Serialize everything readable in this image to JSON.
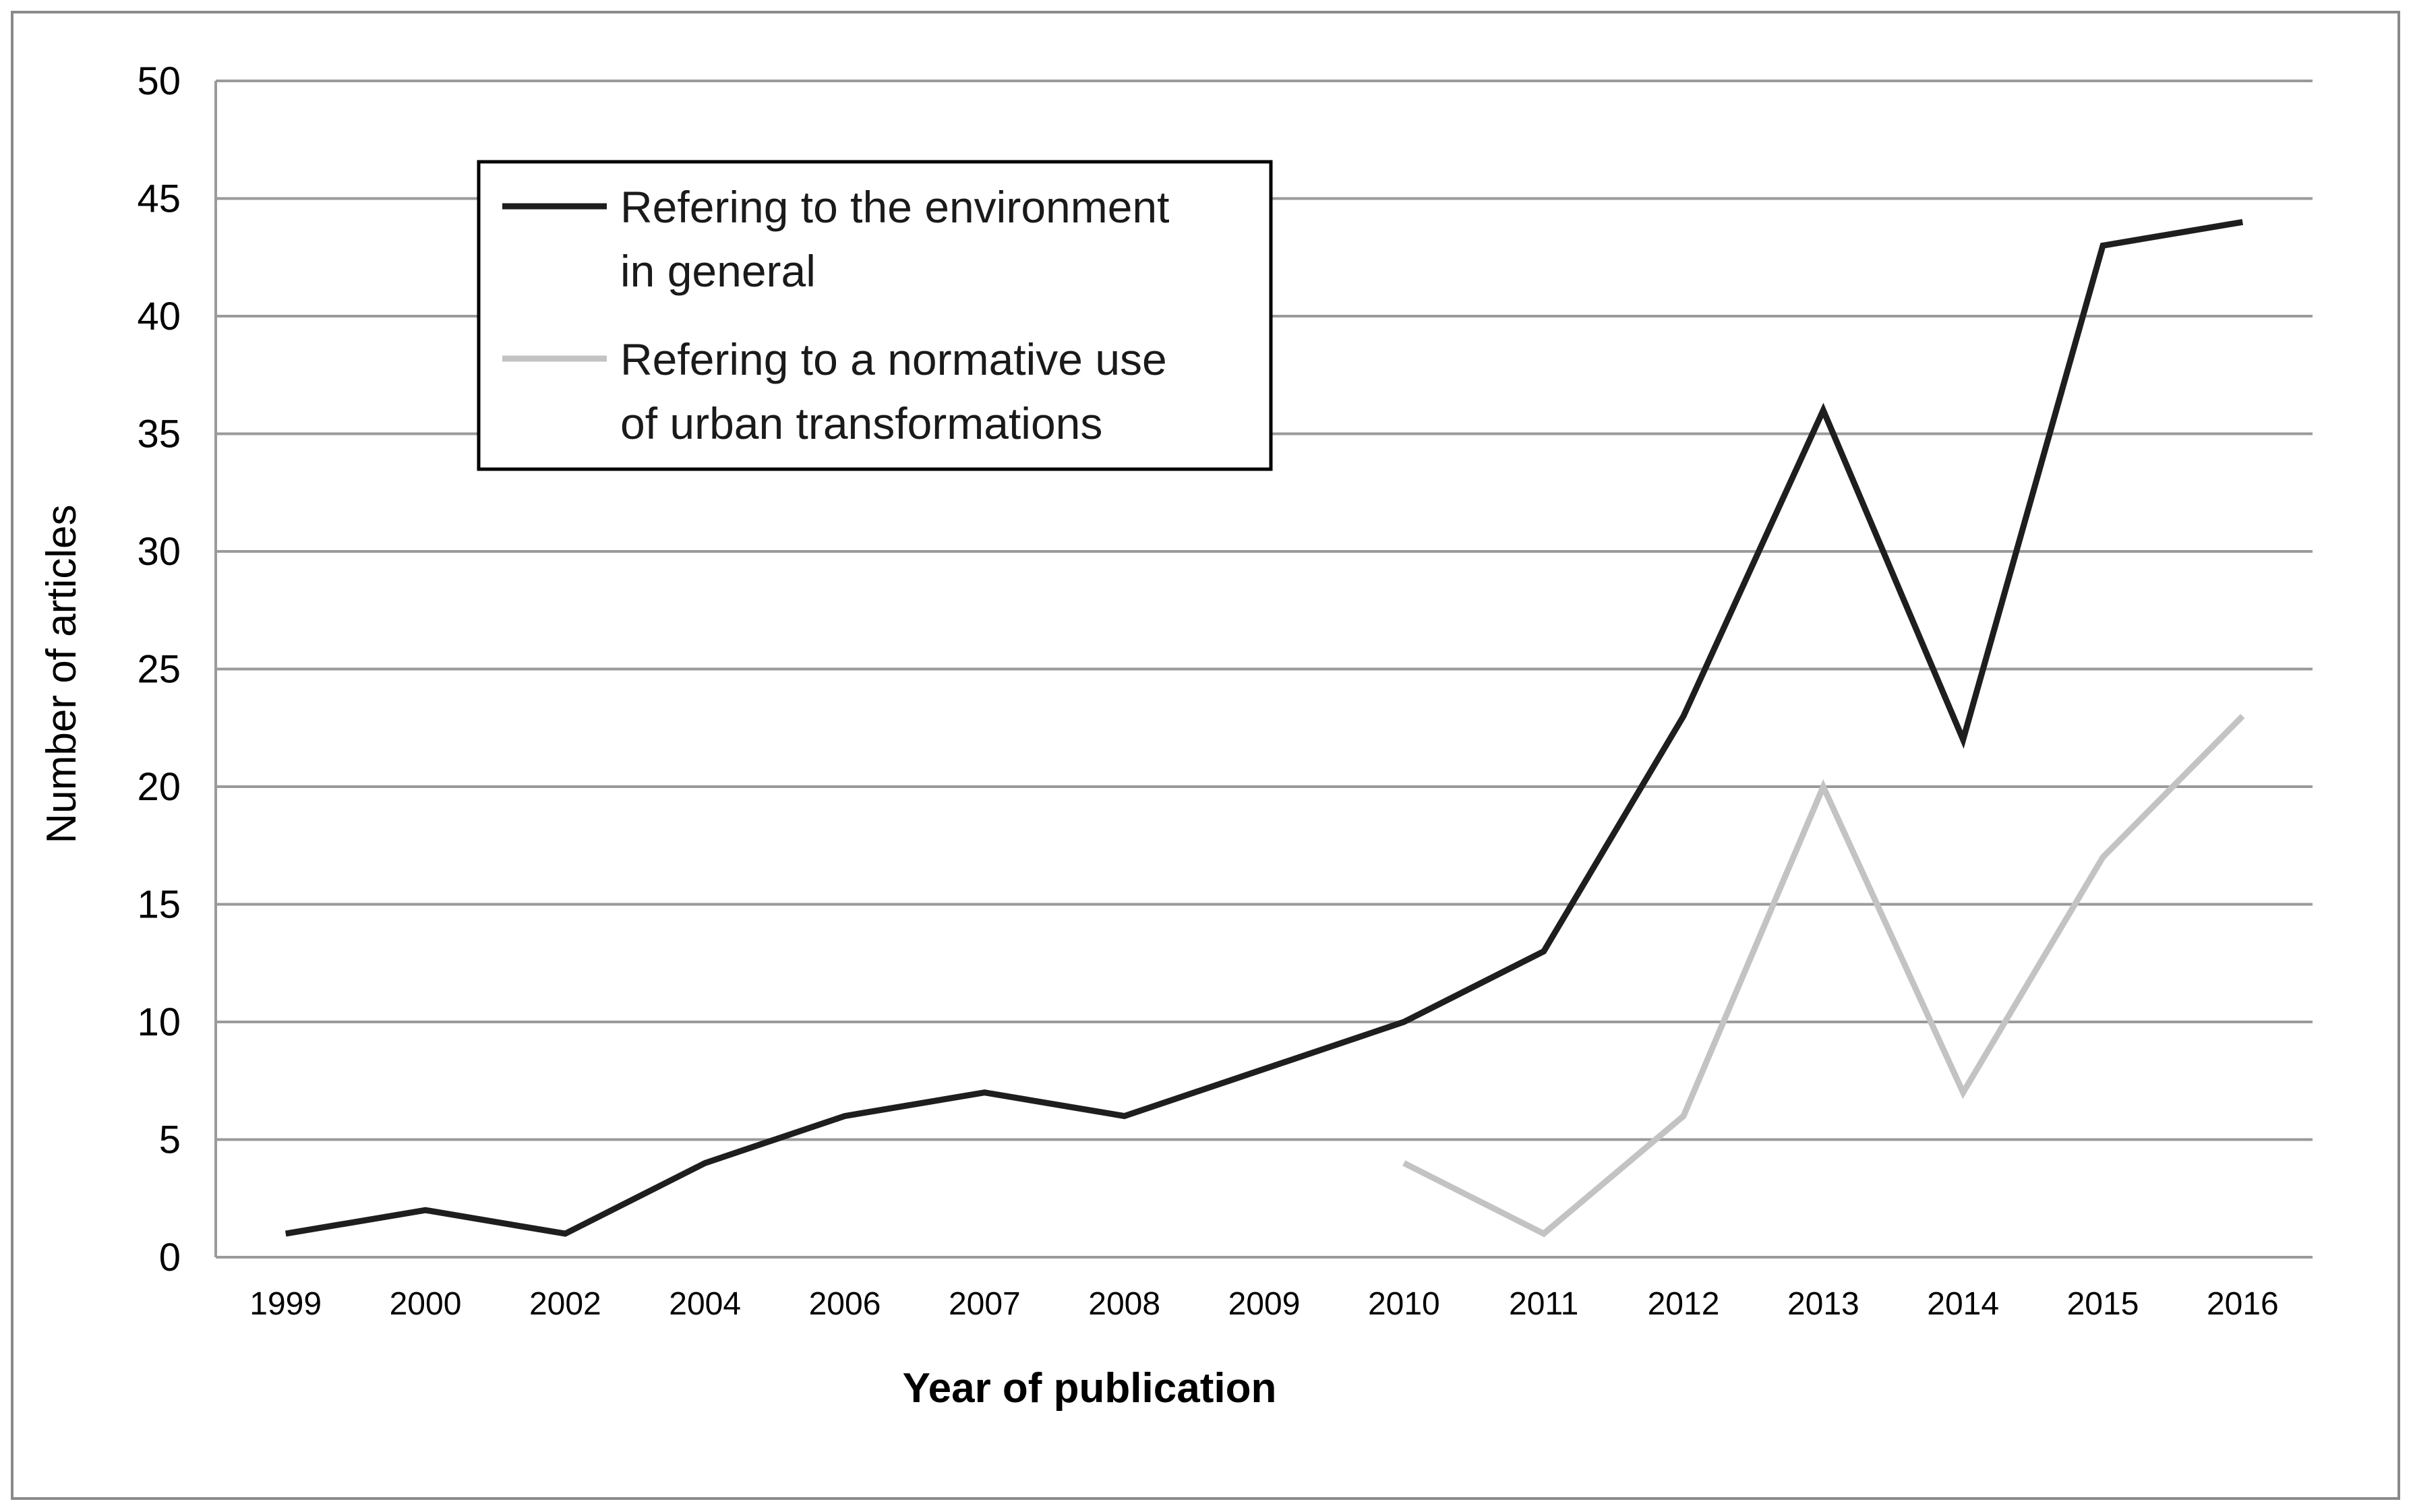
{
  "chart_data": {
    "type": "line",
    "title": "",
    "xlabel": "Year of publication",
    "ylabel": "Number of articles",
    "categories": [
      "1999",
      "2000",
      "2002",
      "2004",
      "2006",
      "2007",
      "2008",
      "2009",
      "2010",
      "2011",
      "2012",
      "2013",
      "2014",
      "2015",
      "2016"
    ],
    "ylim": [
      0,
      50
    ],
    "yticks": [
      0,
      5,
      10,
      15,
      20,
      25,
      30,
      35,
      40,
      45,
      50
    ],
    "grid": true,
    "legend_position": "top-left",
    "series": [
      {
        "name": "Refering to the environment in general",
        "legend_lines": [
          "Refering to the environment",
          "in general"
        ],
        "color": "#1e1e1e",
        "values": [
          1,
          2,
          1,
          4,
          6,
          7,
          6,
          8,
          10,
          13,
          23,
          36,
          22,
          43,
          44
        ]
      },
      {
        "name": "Refering to a normative use of urban transformations",
        "legend_lines": [
          "Refering to a normative use",
          "of urban transformations"
        ],
        "color": "#c3c3c3",
        "values": [
          null,
          null,
          null,
          null,
          null,
          null,
          null,
          null,
          4,
          1,
          6,
          20,
          7,
          17,
          23
        ]
      }
    ]
  }
}
